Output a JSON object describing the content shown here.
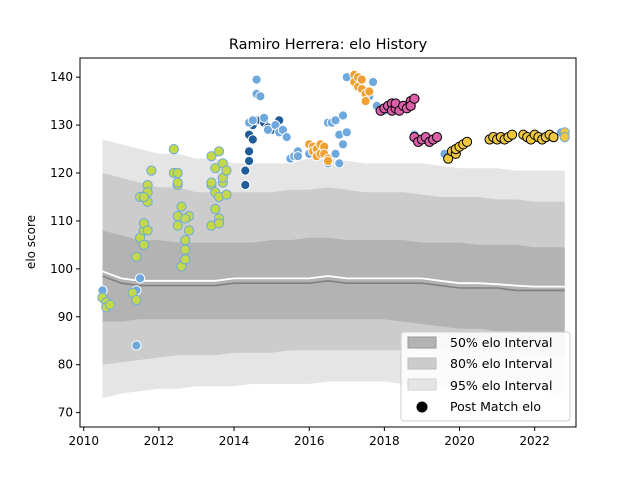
{
  "chart_data": {
    "type": "scatter",
    "title": "Ramiro Herrera: elo History",
    "xlabel": "",
    "ylabel": "elo score",
    "xlim": [
      2009.9,
      2023.1
    ],
    "ylim": [
      67,
      144
    ],
    "x_ticks": [
      2010,
      2012,
      2014,
      2016,
      2018,
      2020,
      2022
    ],
    "y_ticks": [
      70,
      80,
      90,
      100,
      110,
      120,
      130,
      140
    ],
    "grid": false,
    "legend": {
      "placement": "lower-right",
      "entries": [
        "50% elo Interval",
        "80% elo Interval",
        "95% elo Interval",
        "Post Match elo"
      ]
    },
    "colors": {
      "band95": "#e5e5e5",
      "band80": "#cccccc",
      "band50": "#b3b3b3",
      "median": "#808080",
      "mean": "#ffffff",
      "marker_edge": "#000000"
    },
    "bands": {
      "x": [
        2010.5,
        2011.0,
        2011.5,
        2012.0,
        2012.5,
        2013.0,
        2013.5,
        2014.0,
        2014.5,
        2015.0,
        2015.5,
        2016.0,
        2016.5,
        2017.0,
        2017.5,
        2018.0,
        2018.5,
        2019.0,
        2019.5,
        2020.0,
        2020.5,
        2021.0,
        2021.5,
        2022.0,
        2022.5,
        2022.8
      ],
      "p95_high": [
        127,
        126,
        125,
        124,
        124,
        123,
        123,
        122,
        122,
        122,
        122,
        123,
        123,
        122.5,
        122,
        122,
        122,
        122,
        121.5,
        121,
        121,
        121,
        120.5,
        120.5,
        120.5,
        120.5
      ],
      "p95_low": [
        73,
        74,
        74.5,
        75,
        75,
        75.5,
        75.5,
        75.5,
        76,
        76,
        76,
        76,
        76.5,
        76.5,
        76.5,
        76.5,
        76,
        76,
        75.5,
        75,
        75,
        75,
        74.5,
        74.5,
        74,
        74
      ],
      "p80_high": [
        120,
        119,
        118,
        117,
        117,
        116,
        116,
        116,
        116,
        116,
        116.5,
        116.5,
        117,
        116.5,
        116,
        116,
        116,
        115.5,
        115,
        115,
        115,
        114.5,
        114.5,
        114,
        114,
        114
      ],
      "p80_low": [
        80,
        80.5,
        81,
        81.5,
        82,
        82,
        82,
        82.5,
        82.5,
        82.5,
        83,
        83,
        83,
        83,
        83,
        83,
        83,
        83,
        83,
        83,
        83,
        82.5,
        82.5,
        82,
        82,
        82
      ],
      "p50_high": [
        108,
        107,
        106,
        106,
        105.5,
        105.5,
        105.5,
        105.5,
        105.5,
        106,
        106,
        106.5,
        106.5,
        106,
        106,
        106,
        106,
        105.5,
        105.5,
        105.5,
        105,
        105,
        105,
        104.5,
        104.5,
        104.5
      ],
      "p50_low": [
        89,
        89,
        89.5,
        89.5,
        89.5,
        89.5,
        89.5,
        89.5,
        89.5,
        89.5,
        89.5,
        89.5,
        89.5,
        89.5,
        89.5,
        89.5,
        89,
        88.5,
        88,
        87.5,
        87.5,
        87,
        87,
        86.5,
        86.5,
        86.5
      ],
      "median": [
        98.5,
        97,
        96.5,
        96.5,
        96.5,
        96.5,
        96.5,
        97,
        97,
        97,
        97,
        97,
        97.5,
        97,
        97,
        97,
        97,
        97,
        96.5,
        96,
        96,
        96,
        95.5,
        95.5,
        95.5,
        95.5
      ],
      "mean": [
        99.5,
        98,
        97.5,
        97.5,
        97.5,
        97.5,
        97.5,
        98,
        98,
        98,
        98,
        98,
        98.5,
        98,
        98,
        98,
        98,
        98,
        97.5,
        97,
        97,
        96.8,
        96.5,
        96.3,
        96.3,
        96.3
      ]
    },
    "series": [
      {
        "color": "#6fa8dc",
        "edge": "#ffffff",
        "points": [
          [
            2010.5,
            95.5
          ],
          [
            2010.6,
            92.5
          ],
          [
            2010.7,
            92.5
          ],
          [
            2011.4,
            84
          ],
          [
            2011.4,
            95.5
          ],
          [
            2011.5,
            98
          ]
        ]
      },
      {
        "color": "#c4d94a",
        "edge": "#6fa8dc",
        "points": [
          [
            2010.5,
            94
          ],
          [
            2010.6,
            93
          ],
          [
            2010.6,
            92
          ],
          [
            2010.7,
            92.5
          ],
          [
            2011.3,
            95
          ],
          [
            2011.4,
            93.5
          ],
          [
            2011.4,
            102.5
          ],
          [
            2011.5,
            106.5
          ],
          [
            2011.5,
            115
          ],
          [
            2011.6,
            108
          ],
          [
            2011.6,
            105
          ],
          [
            2011.6,
            109.5
          ],
          [
            2011.7,
            117.5
          ],
          [
            2011.7,
            114
          ],
          [
            2011.7,
            116
          ],
          [
            2011.7,
            108
          ],
          [
            2011.8,
            120.5
          ],
          [
            2011.6,
            115
          ],
          [
            2012.4,
            125
          ],
          [
            2012.4,
            120
          ],
          [
            2012.5,
            117.5
          ],
          [
            2012.5,
            111
          ],
          [
            2012.5,
            118
          ],
          [
            2012.5,
            120
          ],
          [
            2012.5,
            109
          ],
          [
            2012.6,
            113
          ],
          [
            2012.6,
            100.5
          ],
          [
            2012.7,
            104
          ],
          [
            2012.7,
            106
          ],
          [
            2012.8,
            108
          ],
          [
            2012.8,
            111
          ],
          [
            2012.7,
            110.5
          ],
          [
            2012.7,
            102
          ],
          [
            2013.4,
            123.5
          ],
          [
            2013.4,
            117.5
          ],
          [
            2013.4,
            109
          ],
          [
            2013.5,
            121
          ],
          [
            2013.5,
            116
          ],
          [
            2013.5,
            112.5
          ],
          [
            2013.6,
            110.5
          ],
          [
            2013.6,
            115
          ],
          [
            2013.6,
            124.5
          ],
          [
            2013.7,
            118
          ],
          [
            2013.7,
            122
          ],
          [
            2013.7,
            119
          ],
          [
            2013.8,
            115.5
          ],
          [
            2013.8,
            120.5
          ],
          [
            2013.6,
            109.5
          ],
          [
            2013.4,
            118
          ]
        ]
      },
      {
        "color": "#1f5c99",
        "edge": "#ffffff",
        "points": [
          [
            2014.3,
            117.5
          ],
          [
            2014.3,
            120.5
          ],
          [
            2014.4,
            122.5
          ],
          [
            2014.4,
            124.5
          ],
          [
            2014.4,
            128
          ],
          [
            2014.5,
            127
          ],
          [
            2014.5,
            130
          ],
          [
            2014.6,
            131
          ],
          [
            2014.7,
            131
          ],
          [
            2014.8,
            130.5
          ],
          [
            2014.9,
            129.5
          ],
          [
            2015.0,
            129
          ],
          [
            2015.1,
            130
          ],
          [
            2015.2,
            131
          ]
        ]
      },
      {
        "color": "#6fa8dc",
        "edge": "#ffffff",
        "points": [
          [
            2014.4,
            130.5
          ],
          [
            2014.5,
            131
          ],
          [
            2014.6,
            136.5
          ],
          [
            2014.7,
            136
          ],
          [
            2014.6,
            139.5
          ],
          [
            2014.8,
            131.5
          ],
          [
            2014.9,
            129
          ],
          [
            2015.1,
            130
          ],
          [
            2015.2,
            128.5
          ],
          [
            2015.3,
            129
          ],
          [
            2015.4,
            127.5
          ],
          [
            2015.5,
            123
          ],
          [
            2015.6,
            123.5
          ],
          [
            2015.7,
            124.5
          ],
          [
            2015.7,
            123.5
          ],
          [
            2016.0,
            124
          ],
          [
            2016.1,
            125.5
          ],
          [
            2016.2,
            124.5
          ],
          [
            2016.3,
            126
          ],
          [
            2016.4,
            124.5
          ],
          [
            2016.5,
            130.5
          ],
          [
            2016.5,
            122
          ],
          [
            2016.6,
            130.5
          ],
          [
            2016.7,
            131
          ],
          [
            2016.7,
            124
          ],
          [
            2016.8,
            128
          ],
          [
            2016.8,
            122
          ],
          [
            2016.9,
            126
          ],
          [
            2016.9,
            132
          ],
          [
            2017.0,
            140
          ],
          [
            2017.0,
            128.5
          ],
          [
            2017.6,
            136
          ],
          [
            2017.7,
            139
          ],
          [
            2017.8,
            134
          ],
          [
            2017.9,
            133
          ],
          [
            2018.0,
            133
          ],
          [
            2018.1,
            134
          ],
          [
            2018.8,
            128
          ],
          [
            2018.9,
            127
          ],
          [
            2019.3,
            127
          ],
          [
            2019.4,
            127.5
          ],
          [
            2019.6,
            124
          ],
          [
            2022.7,
            128.5
          ],
          [
            2022.8,
            127.5
          ]
        ]
      },
      {
        "color": "#f0a030",
        "edge": "#ffffff",
        "points": [
          [
            2016.0,
            126
          ],
          [
            2016.1,
            125.5
          ],
          [
            2016.1,
            124.5
          ],
          [
            2016.2,
            125
          ],
          [
            2016.2,
            123.5
          ],
          [
            2016.3,
            126
          ],
          [
            2016.3,
            124
          ],
          [
            2016.4,
            125.5
          ],
          [
            2016.4,
            124
          ],
          [
            2016.5,
            123
          ],
          [
            2016.5,
            122.5
          ],
          [
            2017.2,
            140.5
          ],
          [
            2017.2,
            139
          ],
          [
            2017.3,
            140
          ],
          [
            2017.3,
            138
          ],
          [
            2017.4,
            139.5
          ],
          [
            2017.4,
            137.5
          ],
          [
            2017.5,
            136.5
          ],
          [
            2017.5,
            135
          ],
          [
            2017.6,
            137
          ]
        ]
      },
      {
        "color": "#d85fa8",
        "edge": "#000000",
        "points": [
          [
            2017.9,
            133
          ],
          [
            2018.0,
            133.5
          ],
          [
            2018.1,
            134
          ],
          [
            2018.2,
            134.5
          ],
          [
            2018.2,
            133
          ],
          [
            2018.3,
            133.5
          ],
          [
            2018.3,
            134.5
          ],
          [
            2018.4,
            133
          ],
          [
            2018.5,
            134
          ],
          [
            2018.6,
            133.5
          ],
          [
            2018.7,
            135
          ],
          [
            2018.7,
            134
          ],
          [
            2018.8,
            135.5
          ],
          [
            2018.8,
            127.5
          ],
          [
            2018.9,
            126.5
          ],
          [
            2019.0,
            127
          ],
          [
            2019.1,
            127.5
          ],
          [
            2019.2,
            126.5
          ],
          [
            2019.3,
            127
          ],
          [
            2019.4,
            127.5
          ]
        ]
      },
      {
        "color": "#f0c840",
        "edge": "#000000",
        "points": [
          [
            2019.7,
            123
          ],
          [
            2019.8,
            124.5
          ],
          [
            2019.9,
            124
          ],
          [
            2019.9,
            125
          ],
          [
            2020.0,
            125.5
          ],
          [
            2020.1,
            126
          ],
          [
            2020.2,
            126.5
          ],
          [
            2020.8,
            127
          ],
          [
            2020.9,
            127.5
          ],
          [
            2021.0,
            127
          ],
          [
            2021.1,
            127.5
          ],
          [
            2021.2,
            127
          ],
          [
            2021.3,
            127.5
          ],
          [
            2021.4,
            128
          ],
          [
            2021.7,
            128
          ],
          [
            2021.8,
            127.5
          ],
          [
            2021.9,
            127
          ],
          [
            2022.0,
            128
          ],
          [
            2022.1,
            127.5
          ],
          [
            2022.2,
            127
          ],
          [
            2022.3,
            127.5
          ],
          [
            2022.4,
            128
          ],
          [
            2022.5,
            127.5
          ]
        ]
      },
      {
        "color": "#f0c840",
        "edge": "#6fa8dc",
        "points": [
          [
            2022.8,
            128.5
          ],
          [
            2022.8,
            127.5
          ]
        ]
      }
    ]
  }
}
